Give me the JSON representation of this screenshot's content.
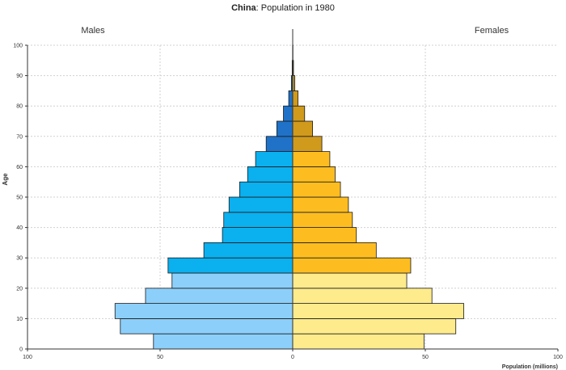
{
  "chart_data": {
    "type": "bar",
    "subtype": "population-pyramid",
    "title_bold": "China",
    "title_rest": ": Population in 1980",
    "xlabel": "Population (millions)",
    "ylabel": "Age",
    "xlim": [
      -100,
      100
    ],
    "ylim": [
      0,
      100
    ],
    "x_ticks": [
      -100,
      -50,
      0,
      50,
      100
    ],
    "x_tick_labels": [
      "100",
      "50",
      "0",
      "50",
      "100"
    ],
    "y_ticks": [
      0,
      10,
      20,
      30,
      40,
      50,
      60,
      70,
      80,
      90,
      100
    ],
    "grid": true,
    "age_groups": [
      "0-4",
      "5-9",
      "10-14",
      "15-19",
      "20-24",
      "25-29",
      "30-34",
      "35-39",
      "40-44",
      "45-49",
      "50-54",
      "55-59",
      "60-64",
      "65-69",
      "70-74",
      "75-79",
      "80-84",
      "85-89",
      "90-94",
      "95-99"
    ],
    "series": [
      {
        "name": "Males",
        "values": [
          52.5,
          65,
          67,
          55.5,
          45.5,
          47,
          33.5,
          26.5,
          26,
          24,
          20,
          17,
          14,
          10,
          6,
          3.5,
          1.5,
          0.5,
          0.2,
          0.05
        ],
        "colors": {
          "young": "#8ccffa",
          "working": "#0bb0ef",
          "old": "#1f72c8"
        }
      },
      {
        "name": "Females",
        "values": [
          49.5,
          61.5,
          64.5,
          52.5,
          43,
          44.5,
          31.5,
          24,
          22.5,
          21,
          18,
          16,
          14,
          11,
          7.5,
          4.5,
          2,
          0.8,
          0.3,
          0.05
        ],
        "colors": {
          "young": "#feeb8c",
          "working": "#fdbd20",
          "old": "#d09a1c"
        }
      }
    ],
    "color_breaks": {
      "working_from_age": 25,
      "old_from_age": 65
    },
    "grid_color": "#d0d0d0",
    "bar_stroke": "#1a1a1a"
  }
}
